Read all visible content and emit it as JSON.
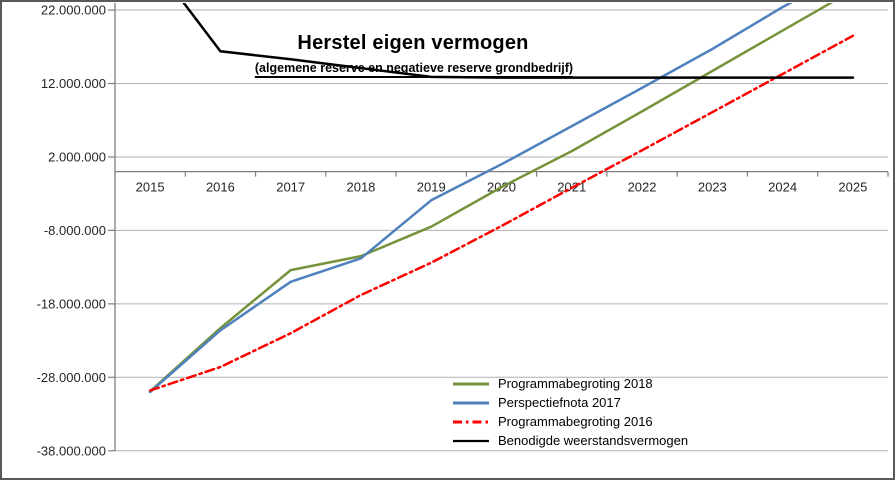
{
  "chart_data": {
    "type": "line",
    "title": "Herstel eigen vermogen",
    "subtitle": "(algemene reserve en negatieve reserve grondbedrijf)",
    "x_labels": [
      "2015",
      "2016",
      "2017",
      "2018",
      "2019",
      "2020",
      "2021",
      "2022",
      "2023",
      "2024",
      "2025"
    ],
    "y_axis": {
      "tick_labels": [
        "22.000.000",
        "12.000.000",
        "2.000.000",
        "-8.000.000",
        "-18.000.000",
        "-28.000.000",
        "-38.000.000"
      ],
      "tick_values": [
        22000000,
        12000000,
        2000000,
        -8000000,
        -18000000,
        -28000000,
        -38000000
      ],
      "min": -38000000,
      "max": 22000000
    },
    "grid": true,
    "legend_position": "inside-bottom-center",
    "colors": {
      "gridline": "#B0B0B0",
      "axis": "#808080",
      "frame_border": "#595959"
    },
    "series": [
      {
        "name": "Programmabegroting 2018",
        "color": "#76933C",
        "dash": "solid",
        "values": [
          -29900000,
          -21300000,
          -13400000,
          -11500000,
          -7500000,
          -2100000,
          2800000,
          8200000,
          13700000,
          19200000,
          24700000
        ]
      },
      {
        "name": "Perspectiefnota 2017",
        "color": "#4F81BD",
        "dash": "solid",
        "values": [
          -30000000,
          -21600000,
          -15000000,
          -11800000,
          -3900000,
          1000000,
          6200000,
          11400000,
          16700000,
          22400000,
          27600000
        ]
      },
      {
        "name": "Programmabegroting 2016",
        "color": "#FF0000",
        "dash": "dash-dot",
        "values": [
          -29800000,
          -26600000,
          -22000000,
          -16800000,
          -12400000,
          -7400000,
          -2200000,
          2900000,
          8100000,
          13300000,
          18500000
        ]
      },
      {
        "name": "Benodigde weerstandsvermogen",
        "color": "#000000",
        "dash": "solid",
        "values": [
          29000000,
          16400000,
          15300000,
          14100000,
          12900000,
          12800000,
          12800000,
          12800000,
          12800000,
          12800000,
          12800000
        ]
      }
    ]
  }
}
